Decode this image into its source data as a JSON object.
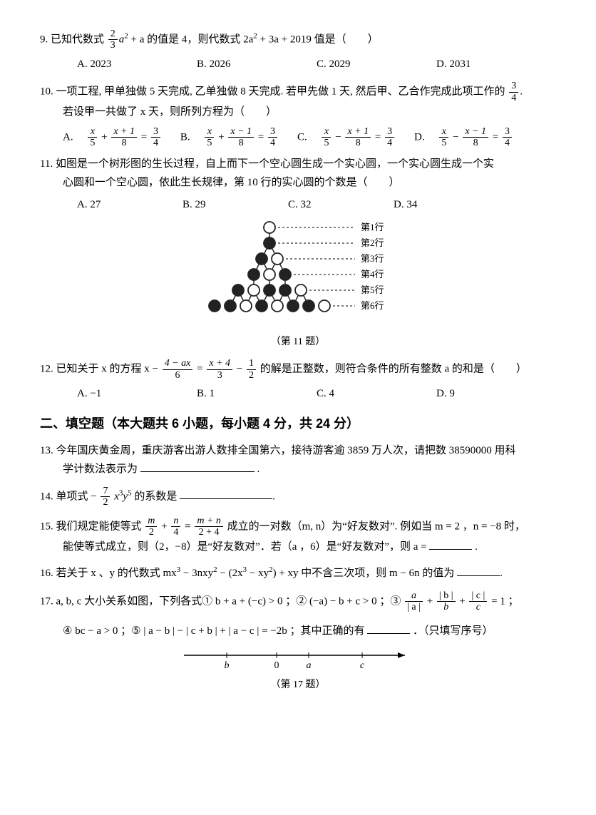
{
  "q9": {
    "stem_pre": "9. 已知代数式",
    "frac_n": "2",
    "frac_d": "3",
    "mid1": "a",
    "sup1": "2",
    "mid2": " + a 的值是 4，则代数式 2a",
    "sup2": "2",
    "mid3": " + 3a + 2019 值是（　　）",
    "opts": {
      "A": "A. 2023",
      "B": "B. 2026",
      "C": "C. 2029",
      "D": "D. 2031"
    }
  },
  "q10": {
    "l1a": "10. 一项工程, 甲单独做 5 天完成, 乙单独做 8 天完成. 若甲先做 1 天, 然后甲、乙合作完成此项工作的",
    "frac_n": "3",
    "frac_d": "4",
    "l1b": ".",
    "l2": "若设甲一共做了 x 天，则所列方程为（　　）",
    "A": {
      "pre": "A.　",
      "n1": "x",
      "d1": "5",
      "op": " + ",
      "n2": "x + 1",
      "d2": "8",
      "eq": " = ",
      "rn": "3",
      "rd": "4"
    },
    "B": {
      "pre": "B.　",
      "n1": "x",
      "d1": "5",
      "op": " + ",
      "n2": "x − 1",
      "d2": "8",
      "eq": " = ",
      "rn": "3",
      "rd": "4"
    },
    "C": {
      "pre": "C.　",
      "n1": "x",
      "d1": "5",
      "op": " − ",
      "n2": "x + 1",
      "d2": "8",
      "eq": " = ",
      "rn": "3",
      "rd": "4"
    },
    "D": {
      "pre": "D.　",
      "n1": "x",
      "d1": "5",
      "op": " − ",
      "n2": "x − 1",
      "d2": "8",
      "eq": " = ",
      "rn": "3",
      "rd": "4"
    }
  },
  "q11": {
    "l1": "11. 如图是一个树形图的生长过程，自上而下一个空心圆生成一个实心圆，一个实心圆生成一个实",
    "l2": "心圆和一个空心圆，依此生长规律，第 10 行的实心圆的个数是（　　）",
    "opts": {
      "A": "A. 27",
      "B": "B. 29",
      "C": "C. 32",
      "D": "D. 34"
    },
    "row_labels": [
      "第1行",
      "第2行",
      "第3行",
      "第4行",
      "第5行",
      "第6行"
    ],
    "caption": "（第 11 题）",
    "fill": "#222222",
    "stroke": "#222222",
    "empty": "#ffffff",
    "rows": {
      "counts": [
        1,
        1,
        2,
        3,
        5,
        8
      ],
      "fills": [
        [
          0
        ],
        [
          1
        ],
        [
          1,
          0
        ],
        [
          1,
          0,
          1
        ],
        [
          1,
          0,
          1,
          1,
          0
        ],
        [
          1,
          1,
          0,
          1,
          0,
          1,
          1,
          0
        ]
      ]
    }
  },
  "q12": {
    "pre": "12. 已知关于 x 的方程 x − ",
    "n1": "4 − ax",
    "d1": "6",
    "eq": " = ",
    "n2": "x + 4",
    "d2": "3",
    "minus": " − ",
    "n3": "1",
    "d3": "2",
    "post": " 的解是正整数，则符合条件的所有整数 a 的和是（　　）",
    "opts": {
      "A": "A. −1",
      "B": "B. 1",
      "C": "C. 4",
      "D": "D. 9"
    }
  },
  "section2": "二、填空题（本大题共 6 小题，每小题 4 分，共 24 分）",
  "q13": {
    "l1": "13. 今年国庆黄金周，重庆游客出游人数排全国第六，接待游客逾 3859 万人次，请把数 38590000 用科",
    "l2a": "学计数法表示为",
    "l2b": "."
  },
  "q14": {
    "pre": "14. 单项式 − ",
    "n": "7",
    "d": "2",
    "mid": " x",
    "s1": "3",
    "mid2": "y",
    "s2": "5",
    "post": " 的系数是",
    "end": "."
  },
  "q15": {
    "pre": "15. 我们规定能使等式 ",
    "n1": "m",
    "d1": "2",
    "p": " + ",
    "n2": "n",
    "d2": "4",
    "eq": " = ",
    "n3": "m + n",
    "d3": "2 + 4",
    "mid": " 成立的一对数（m, n）为“好友数对”. 例如当 m = 2 ，n = −8  时，",
    "l2a": "能使等式成立，则（2，−8）是“好友数对”．若（a ，6）是“好友数对”，则 a = ",
    "l2b": "."
  },
  "q16": {
    "pre": "16. 若关于 x 、y 的代数式 mx",
    "s1": "3",
    "m1": " − 3nxy",
    "s2": "2",
    "m2": " − (2x",
    "s3": "3",
    "m3": " − xy",
    "s4": "2",
    "m4": ") + xy 中不含三次项，则 m − 6n 的值为",
    "end": "."
  },
  "q17": {
    "l1a": "17. a, b, c 大小关系如图，下列各式① b + a + (−c) > 0 ；② (−a) − b + c > 0 ；③ ",
    "n1": "a",
    "d1": "| a |",
    "p1": " + ",
    "n2": "| b |",
    "d2": "b",
    "p2": " + ",
    "n3": "| c |",
    "d3": "c",
    "eq": " = 1 ；",
    "l2a": "④ bc − a > 0 ；⑤ | a − b | − | c + b | + | a − c | = −2b ；其中正确的有",
    "l2b": "．（只填写序号）",
    "caption": "（第 17 题）",
    "ticks": {
      "b": "b",
      "0": "0",
      "a": "a",
      "c": "c"
    }
  }
}
